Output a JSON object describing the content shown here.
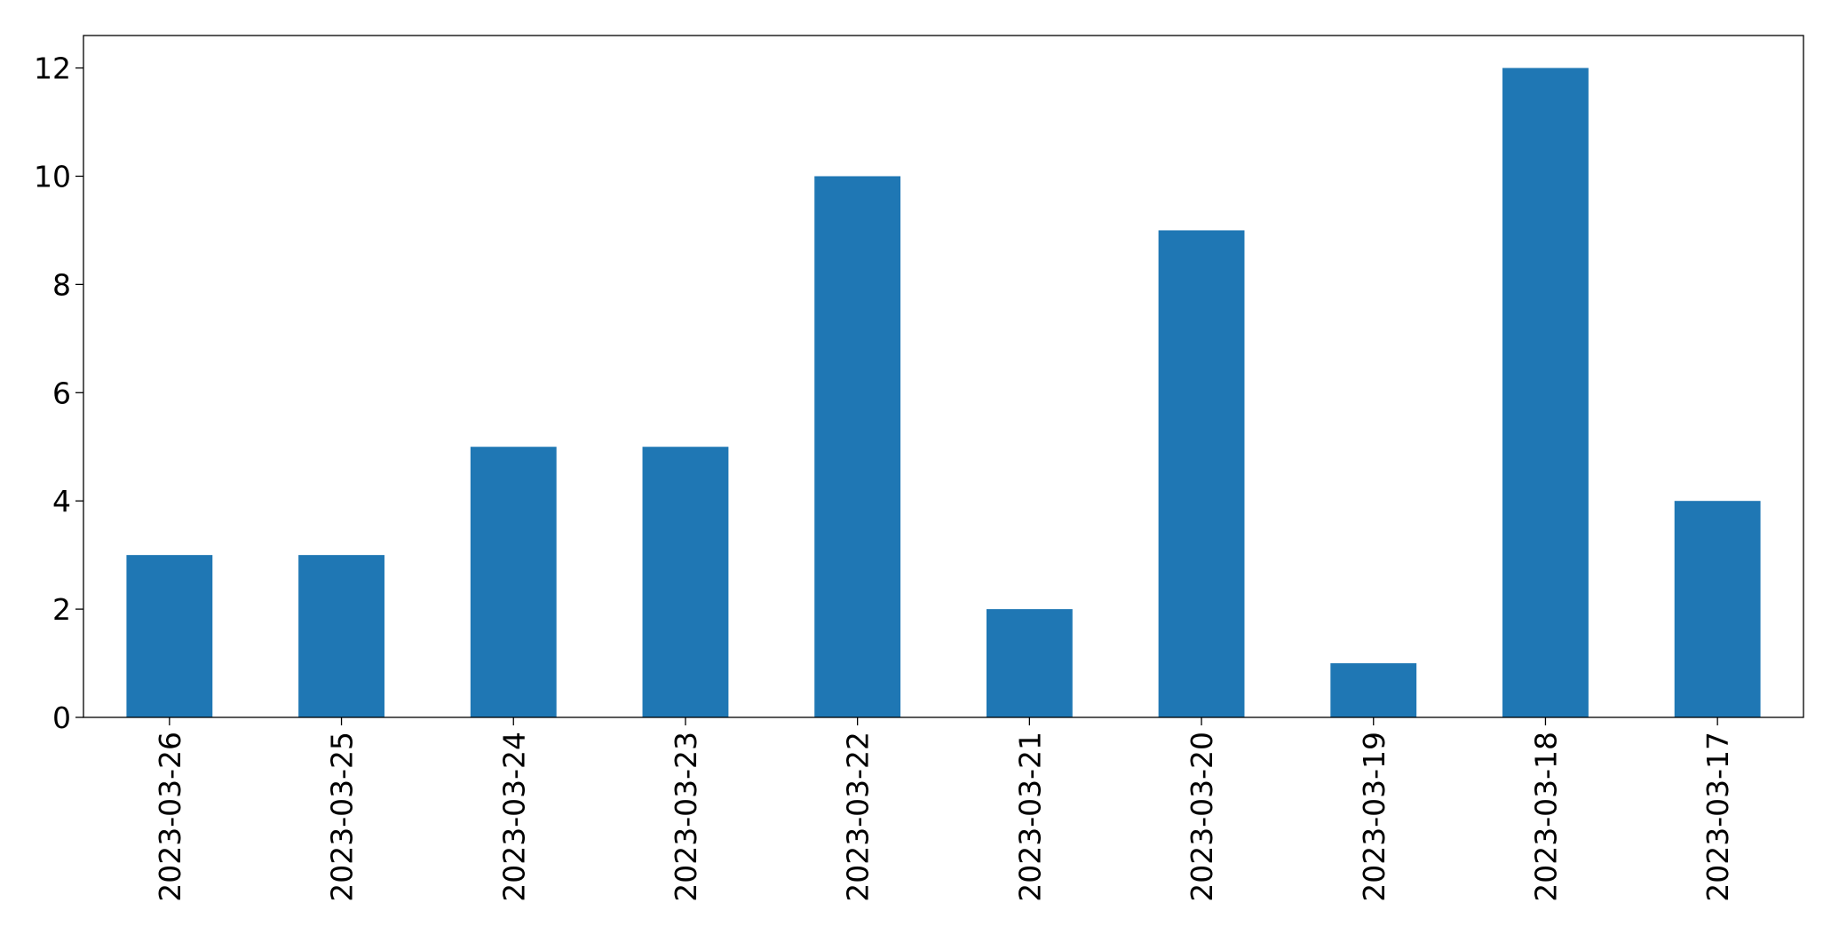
{
  "chart_data": {
    "type": "bar",
    "categories": [
      "2023-03-26",
      "2023-03-25",
      "2023-03-24",
      "2023-03-23",
      "2023-03-22",
      "2023-03-21",
      "2023-03-20",
      "2023-03-19",
      "2023-03-18",
      "2023-03-17"
    ],
    "values": [
      3,
      3,
      5,
      5,
      10,
      2,
      9,
      1,
      12,
      4
    ],
    "color": "#1f77b4",
    "ylim": [
      0,
      12.6
    ],
    "yticks": [
      0,
      2,
      4,
      6,
      8,
      10,
      12
    ],
    "grid": false
  }
}
